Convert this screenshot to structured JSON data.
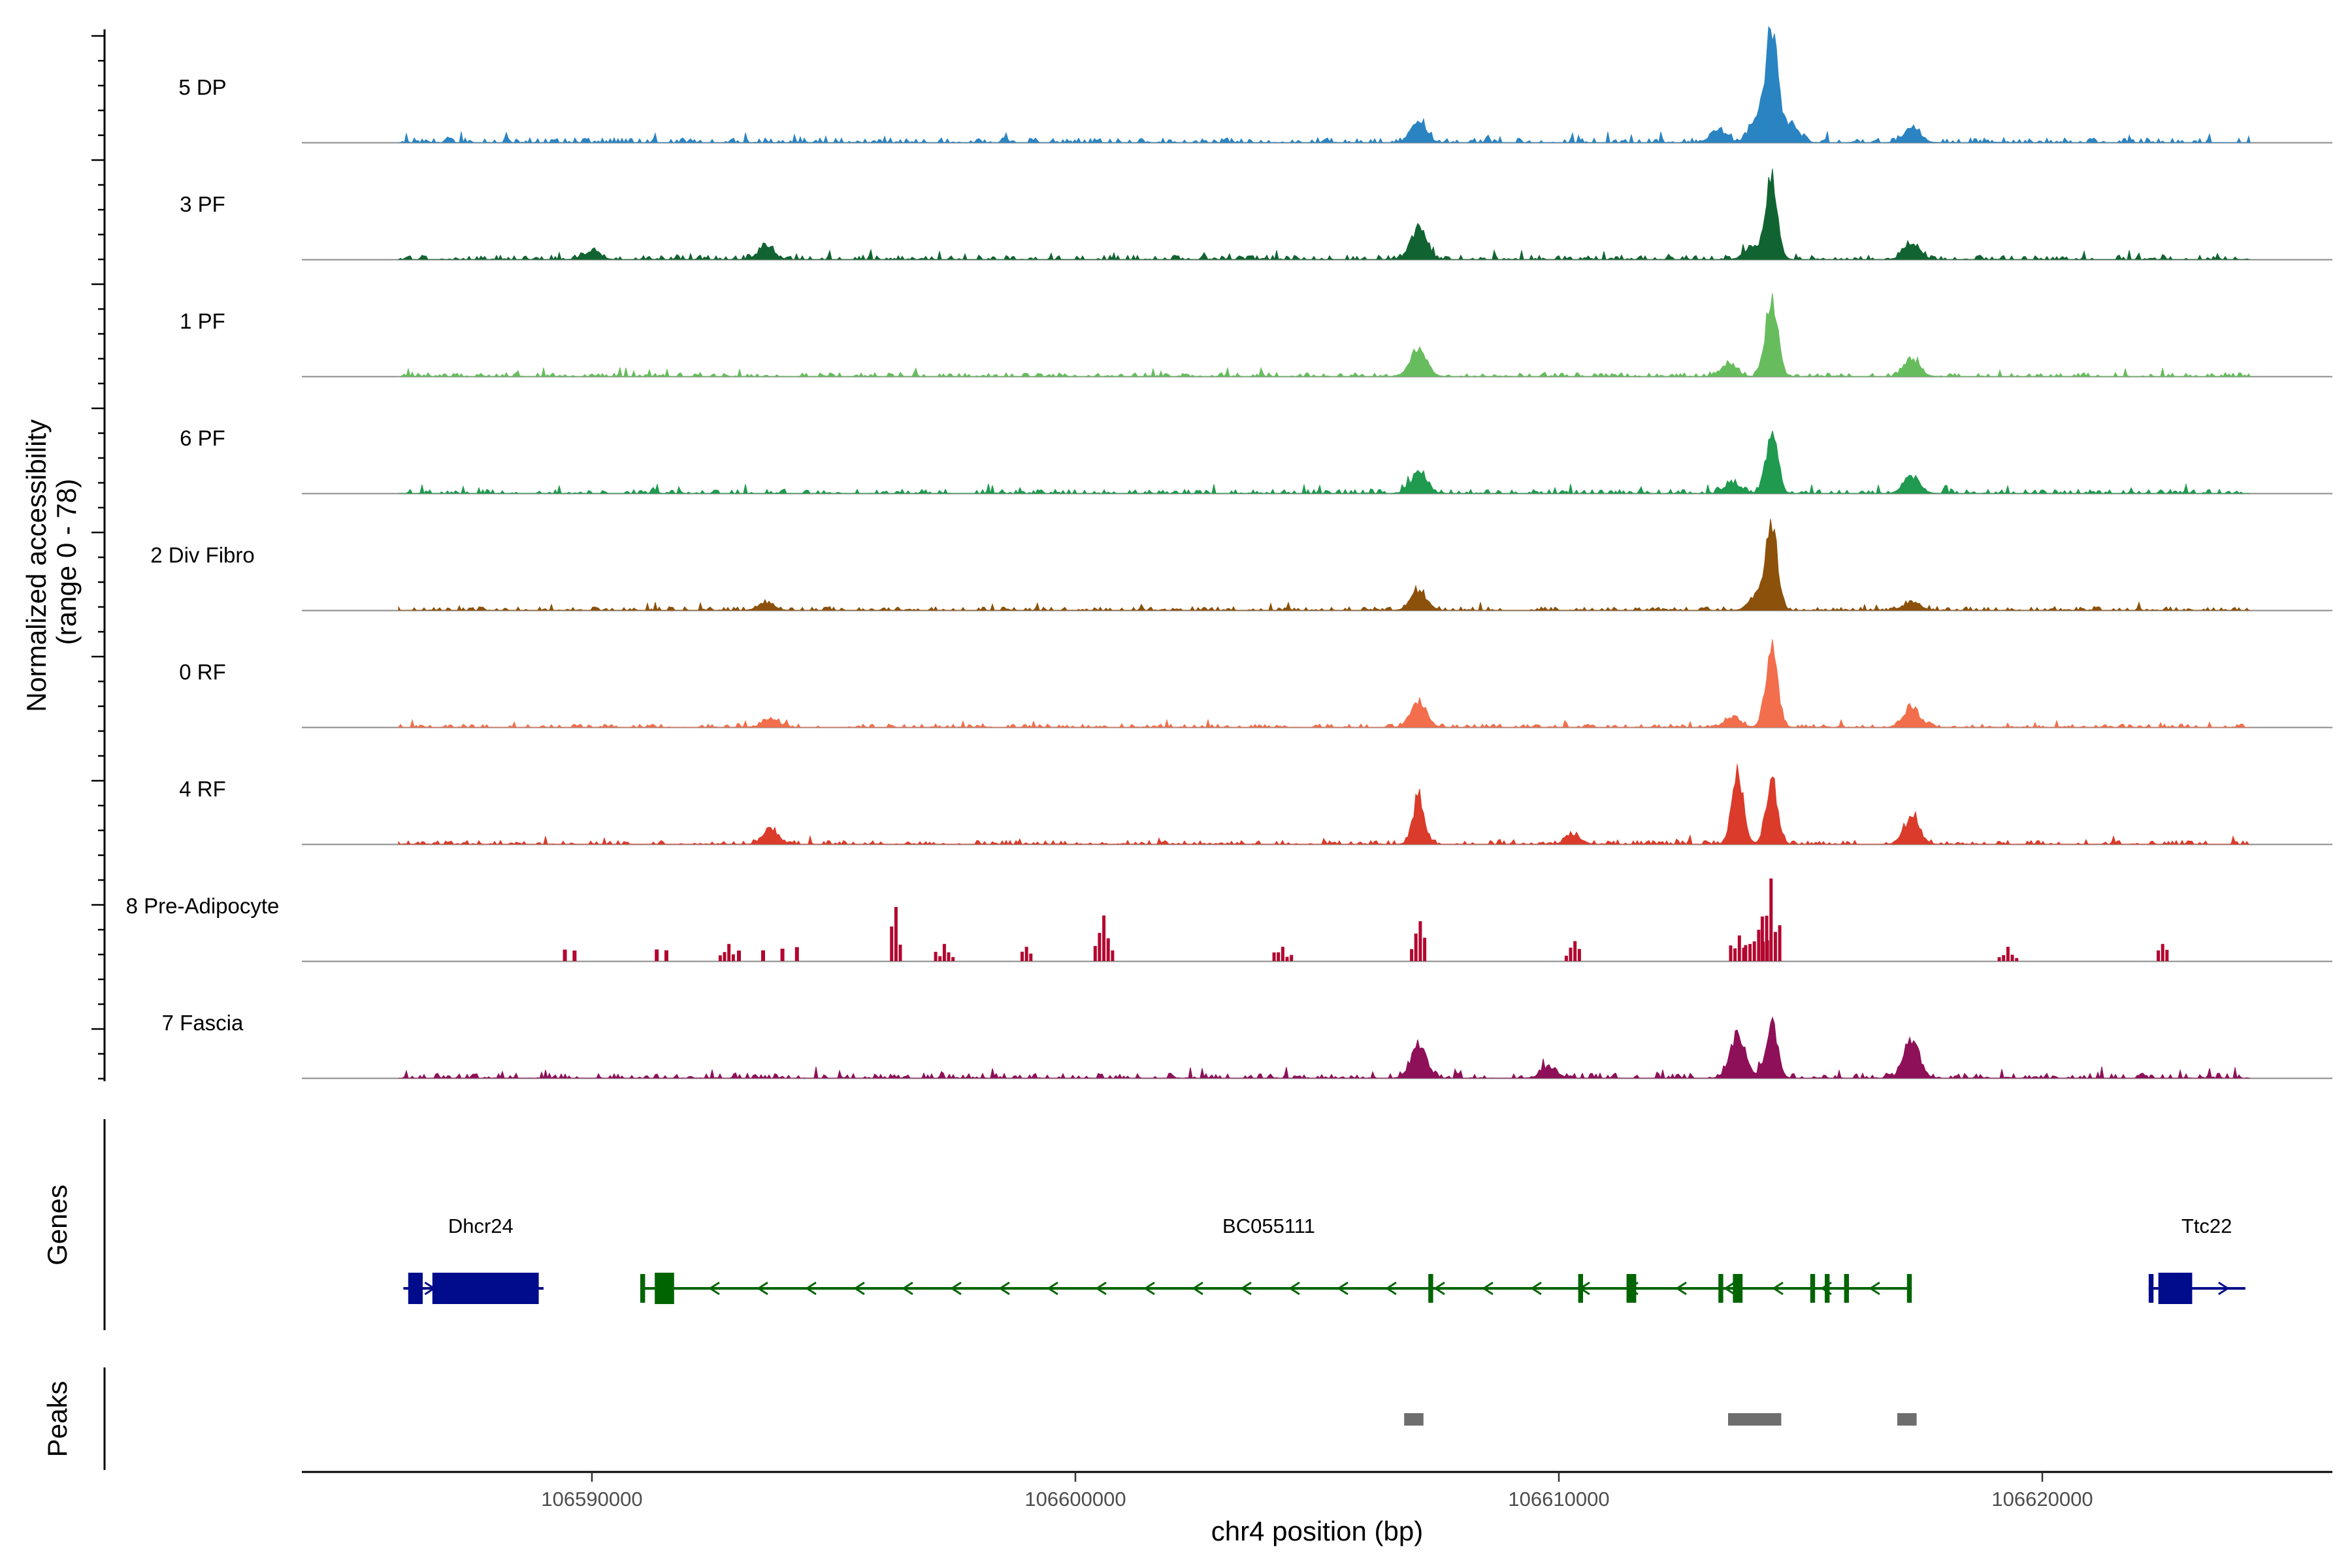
{
  "chart_data": {
    "type": "area",
    "title": "",
    "y_axis_title_line1": "Normalized accessibility",
    "y_axis_title_line2": "(range 0 - 78)",
    "ylim": [
      0,
      78
    ],
    "x_axis_title": "chr4 position (bp)",
    "xlim": [
      106584000,
      106626000
    ],
    "x_ticks": [
      "106590000",
      "106600000",
      "106610000",
      "106620000"
    ],
    "x_tick_values": [
      106590000,
      106600000,
      106610000,
      106620000
    ],
    "track_start": 106586000,
    "track_end": 106624300,
    "tracks": [
      {
        "name": "5 DP",
        "color": "#2b84c2",
        "peaks": [
          [
            106607100,
            13
          ],
          [
            106614400,
            78
          ],
          [
            106614100,
            16
          ],
          [
            106614800,
            14
          ],
          [
            106617300,
            11
          ],
          [
            106613300,
            9
          ]
        ],
        "noise": 3.2
      },
      {
        "name": "3 PF",
        "color": "#116431",
        "peaks": [
          [
            106607100,
            22
          ],
          [
            106614400,
            53
          ],
          [
            106617300,
            12
          ],
          [
            106593600,
            9
          ],
          [
            106590000,
            6
          ],
          [
            106614000,
            9
          ]
        ],
        "noise": 3.0
      },
      {
        "name": "1 PF",
        "color": "#67bd5e",
        "peaks": [
          [
            106607100,
            20
          ],
          [
            106614400,
            55
          ],
          [
            106617300,
            12
          ],
          [
            106613500,
            8
          ]
        ],
        "noise": 2.6
      },
      {
        "name": "6 PF",
        "color": "#1f9a4e",
        "peaks": [
          [
            106607100,
            15
          ],
          [
            106614400,
            42
          ],
          [
            106617300,
            12
          ],
          [
            106613600,
            7
          ]
        ],
        "noise": 2.8
      },
      {
        "name": "2 Div Fibro",
        "color": "#8c510a",
        "peaks": [
          [
            106607100,
            14
          ],
          [
            106614400,
            57
          ],
          [
            106614100,
            10
          ],
          [
            106617300,
            6
          ],
          [
            106593600,
            5
          ]
        ],
        "noise": 2.4
      },
      {
        "name": "0 RF",
        "color": "#f26e4c",
        "peaks": [
          [
            106607100,
            18
          ],
          [
            106614400,
            58
          ],
          [
            106613600,
            7
          ],
          [
            106617300,
            14
          ],
          [
            106593700,
            5
          ]
        ],
        "noise": 2.2
      },
      {
        "name": "4 RF",
        "color": "#db3b2a",
        "peaks": [
          [
            106607100,
            32
          ],
          [
            106613700,
            49
          ],
          [
            106614400,
            43
          ],
          [
            106617300,
            18
          ],
          [
            106593700,
            10
          ],
          [
            106610300,
            6
          ]
        ],
        "noise": 2.6
      },
      {
        "name": "8 Pre-Adipocyte",
        "color": "#b3062f",
        "peaks": [
          [
            106614400,
            58
          ],
          [
            106596300,
            38
          ],
          [
            106600600,
            32
          ],
          [
            106607100,
            28
          ],
          [
            106613700,
            18
          ],
          [
            106614100,
            22
          ],
          [
            106610300,
            14
          ],
          [
            106604300,
            10
          ],
          [
            106599000,
            10
          ],
          [
            106592800,
            12
          ],
          [
            106597300,
            12
          ],
          [
            106619300,
            10
          ],
          [
            106622500,
            12
          ]
        ],
        "noise": 0,
        "sparse": true
      },
      {
        "name": "7 Fascia",
        "color": "#8e1058",
        "peaks": [
          [
            106607100,
            22
          ],
          [
            106613700,
            30
          ],
          [
            106614400,
            38
          ],
          [
            106617300,
            26
          ],
          [
            106609800,
            8
          ]
        ],
        "noise": 3.4
      }
    ],
    "genes_track_title": "Genes",
    "genes": [
      {
        "name": "Dhcr24",
        "start": 106586100,
        "end": 106589000,
        "strand": "+",
        "color": "#000c8b",
        "exons": [
          [
            106586200,
            106586500
          ],
          [
            106586700,
            106588900
          ]
        ],
        "label_pos": 106587700
      },
      {
        "name": "BC055111",
        "start": 106591000,
        "end": 106617300,
        "strand": "-",
        "color": "#006400",
        "exons": [
          [
            106591000,
            106591100
          ],
          [
            106591300,
            106591700
          ],
          [
            106607300,
            106607400
          ],
          [
            106610400,
            106610500
          ],
          [
            106611400,
            106611600
          ],
          [
            106613300,
            106613400
          ],
          [
            106613600,
            106613800
          ],
          [
            106615200,
            106615300
          ],
          [
            106615500,
            106615600
          ],
          [
            106615900,
            106616000
          ],
          [
            106617200,
            106617300
          ]
        ],
        "label_pos": 106604000
      },
      {
        "name": "Ttc22",
        "start": 106622200,
        "end": 106624200,
        "strand": "+",
        "color": "#000c8b",
        "exons": [
          [
            106622200,
            106622300
          ],
          [
            106622400,
            106623100
          ]
        ],
        "label_pos": 106623400
      }
    ],
    "peaks_track_title": "Peaks",
    "peak_regions": [
      [
        106606800,
        106607200
      ],
      [
        106613500,
        106614600
      ],
      [
        106617000,
        106617400
      ]
    ],
    "peak_region_color": "#6e6e6e"
  }
}
